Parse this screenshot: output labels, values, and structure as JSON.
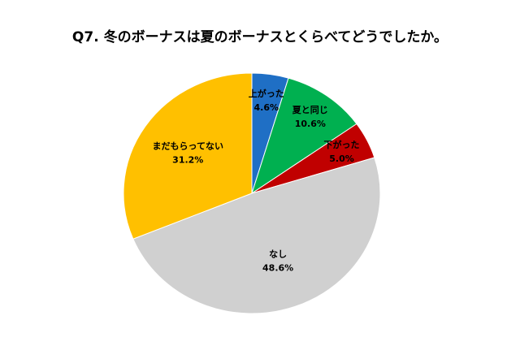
{
  "chart_data": {
    "type": "pie",
    "title": "Q7. 冬のボーナスは夏のボーナスとくらべてどうでしたか。",
    "categories": [
      "上がった",
      "夏と同じ",
      "下がった",
      "なし",
      "まだもらってない"
    ],
    "values": [
      4.6,
      10.6,
      5.0,
      48.6,
      31.2
    ],
    "value_labels": [
      "4.6%",
      "10.6%",
      "5.0%",
      "48.6%",
      "31.2%"
    ],
    "colors": [
      "#1f6fc5",
      "#00b050",
      "#c00000",
      "#d0d0d0",
      "#ffc000"
    ]
  }
}
